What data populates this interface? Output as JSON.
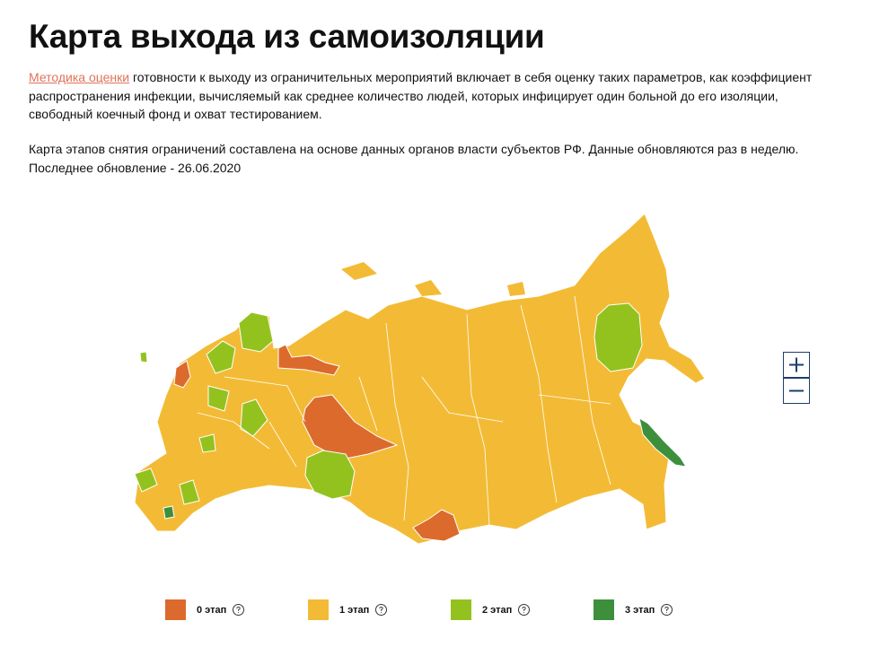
{
  "header": {
    "title": "Карта выхода из самоизоляции"
  },
  "intro": {
    "link": "Методика оценки",
    "text": "готовности к выходу из ограничительных мероприятий включает в себя оценку таких параметров, как коэффициент распространения инфекции, вычисляемый как среднее количество людей, которых инфицирует один больной до его изоляции, свободный коечный фонд и охват тестированием."
  },
  "note": {
    "line1": "Карта этапов снятия ограничений составлена на основе данных органов власти субъектов РФ. Данные обновляются раз в неделю.",
    "line2": "Последнее обновление - 26.06.2020"
  },
  "legend": [
    {
      "label": "0 этап",
      "color": "#dc6a2c"
    },
    {
      "label": "1 этап",
      "color": "#f3bb35"
    },
    {
      "label": "2 этап",
      "color": "#93c21f"
    },
    {
      "label": "3 этап",
      "color": "#3d8f3c"
    }
  ]
}
